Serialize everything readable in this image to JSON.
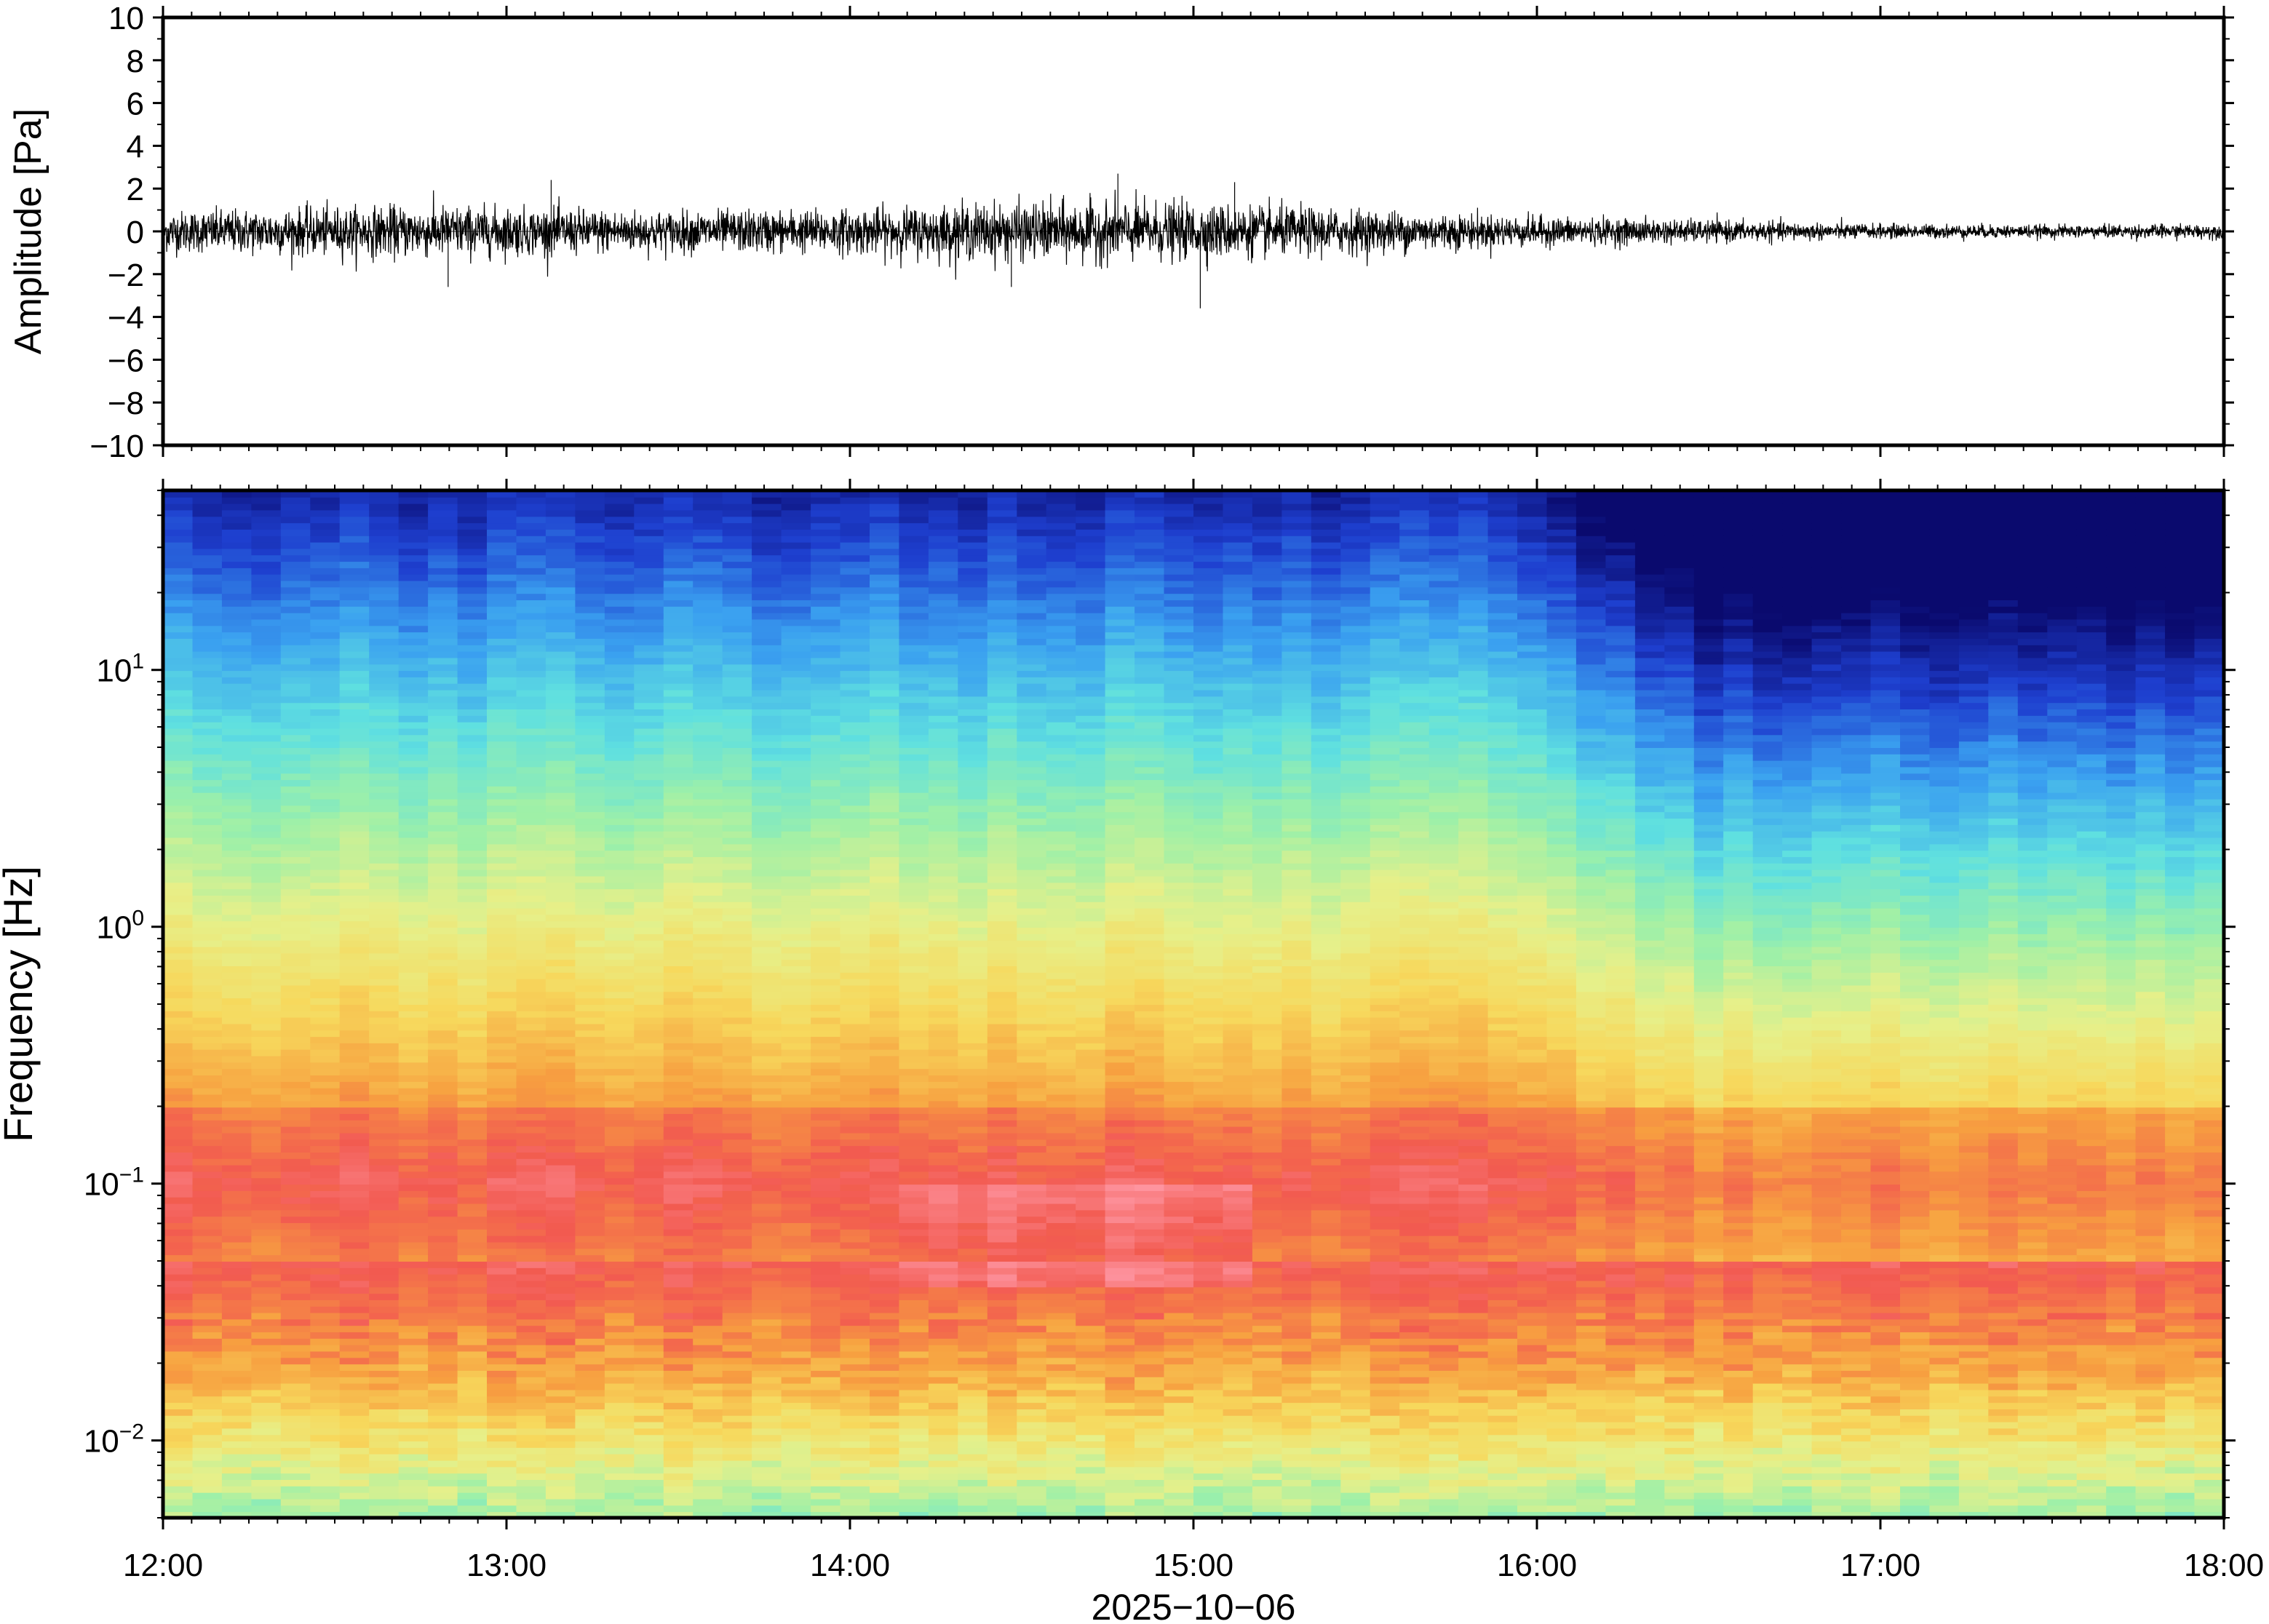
{
  "chart_data": [
    {
      "type": "line",
      "title": "",
      "xlabel": "",
      "ylabel": "Amplitude [Pa]",
      "x_range": [
        "12:00",
        "18:00"
      ],
      "ylim": [
        -10,
        10
      ],
      "y_ticks": [
        "10",
        "8",
        "6",
        "4",
        "2",
        "0",
        "−2",
        "−4",
        "−6",
        "−8",
        "−10"
      ],
      "y_tick_values": [
        10,
        8,
        6,
        4,
        2,
        0,
        -2,
        -4,
        -6,
        -8,
        -10
      ],
      "series": [
        {
          "color": "#000000",
          "envelope_hours": [
            12.0,
            12.5,
            12.8,
            13.0,
            13.5,
            14.0,
            14.4,
            14.8,
            15.0,
            15.3,
            15.6,
            16.0,
            16.5,
            17.0,
            17.5,
            18.0
          ],
          "envelope_amplitude": [
            1.1,
            1.3,
            1.4,
            1.3,
            1.1,
            1.2,
            1.5,
            1.6,
            1.5,
            1.3,
            1.1,
            0.8,
            0.6,
            0.4,
            0.35,
            0.4
          ],
          "max": 2.7,
          "min": -3.6
        }
      ],
      "grid": false
    },
    {
      "type": "heatmap",
      "title": "",
      "xlabel": "2025−10−06",
      "ylabel": "Frequency [Hz]",
      "x_ticks": [
        "12:00",
        "13:00",
        "14:00",
        "15:00",
        "16:00",
        "17:00",
        "18:00"
      ],
      "x_tick_hours": [
        12,
        13,
        14,
        15,
        16,
        17,
        18
      ],
      "y_scale": "log",
      "ylim": [
        0.005,
        50
      ],
      "y_ticks": [
        {
          "base": "10",
          "exp": "1",
          "value": 10
        },
        {
          "base": "10",
          "exp": "0",
          "value": 1
        },
        {
          "base": "10",
          "exp": "−1",
          "value": 0.1
        },
        {
          "base": "10",
          "exp": "−2",
          "value": 0.01
        }
      ],
      "colormap": [
        "#0a0a6e",
        "#1e3fcf",
        "#3aa0f0",
        "#5fe0e0",
        "#9ef0a8",
        "#e6f08a",
        "#f7d85c",
        "#f7a040",
        "#f25a50",
        "#ff9aa8"
      ],
      "grid": false
    }
  ]
}
